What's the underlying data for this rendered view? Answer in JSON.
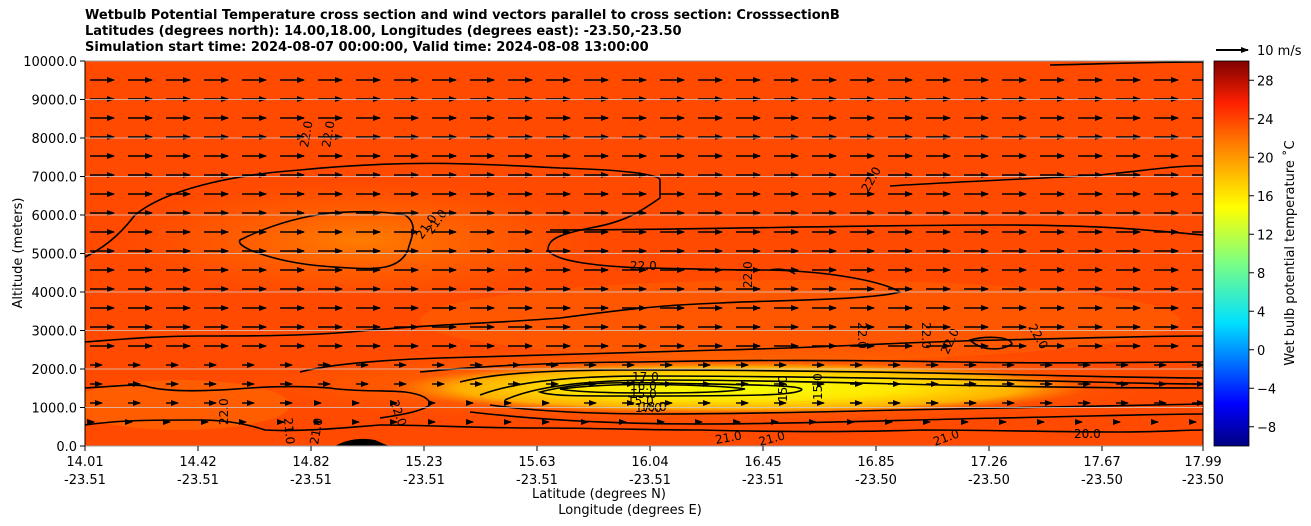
{
  "titles": [
    "Wetbulb Potential Temperature cross section and wind vectors parallel to cross section: CrosssectionB",
    "Latitudes (degrees north): 14.00,18.00, Longitudes (degrees east): -23.50,-23.50",
    "Simulation start time: 2024-08-07 00:00:00, Valid time: 2024-08-08 13:00:00"
  ],
  "wind_key_label": "10 m/s",
  "colors": {
    "background": "#ff4a00",
    "core": "#ffff00",
    "contour": "#000000",
    "terrain": "#000000"
  },
  "chart_data": {
    "type": "heatmap",
    "title": "Wetbulb Potential Temperature cross section and wind vectors parallel to cross section: CrosssectionB",
    "xlabel": "Latitude (degrees N)",
    "xlabel2": "Longitude (degrees E)",
    "ylabel": "Altitude (meters)",
    "ylim": [
      0,
      10000
    ],
    "yticks": [
      "0.0",
      "1000.0",
      "2000.0",
      "3000.0",
      "4000.0",
      "5000.0",
      "6000.0",
      "7000.0",
      "8000.0",
      "9000.0",
      "10000.0"
    ],
    "xticks": [
      {
        "lat": "14.01",
        "lon": "-23.51"
      },
      {
        "lat": "14.42",
        "lon": "-23.51"
      },
      {
        "lat": "14.82",
        "lon": "-23.51"
      },
      {
        "lat": "15.23",
        "lon": "-23.51"
      },
      {
        "lat": "15.63",
        "lon": "-23.51"
      },
      {
        "lat": "16.04",
        "lon": "-23.51"
      },
      {
        "lat": "16.45",
        "lon": "-23.51"
      },
      {
        "lat": "16.85",
        "lon": "-23.50"
      },
      {
        "lat": "17.26",
        "lon": "-23.50"
      },
      {
        "lat": "17.67",
        "lon": "-23.50"
      },
      {
        "lat": "17.99",
        "lon": "-23.50"
      }
    ],
    "colorbar": {
      "label": "Wet bulb potential temperature $^\\circ$C",
      "label_text": "Wet bulb potential temperature ˚C",
      "range": [
        -10,
        30
      ],
      "ticks": [
        "−8",
        "−4",
        "0",
        "4",
        "8",
        "12",
        "16",
        "20",
        "24",
        "28"
      ]
    },
    "contour_labels": [
      "22.0",
      "21.0",
      "22.0",
      "22.0",
      "22.0",
      "22.0",
      "22.0",
      "22.0",
      "22.0",
      "22.0",
      "21.0",
      "22.0",
      "17.0",
      "16.0",
      "15.0",
      "15.0",
      "17.0",
      "18.0",
      "15.0",
      "15.0",
      "22.0",
      "21.0",
      "21.0",
      "21.0",
      "21.0",
      "20.0",
      "21.0"
    ],
    "wind": {
      "direction": "parallel to cross section (southward to northward)",
      "typical_speed_ms": 10
    },
    "core_region": {
      "lat_range": [
        15.6,
        17.5
      ],
      "alt_range_m": [
        1100,
        1900
      ],
      "min_value": 15.0
    }
  }
}
